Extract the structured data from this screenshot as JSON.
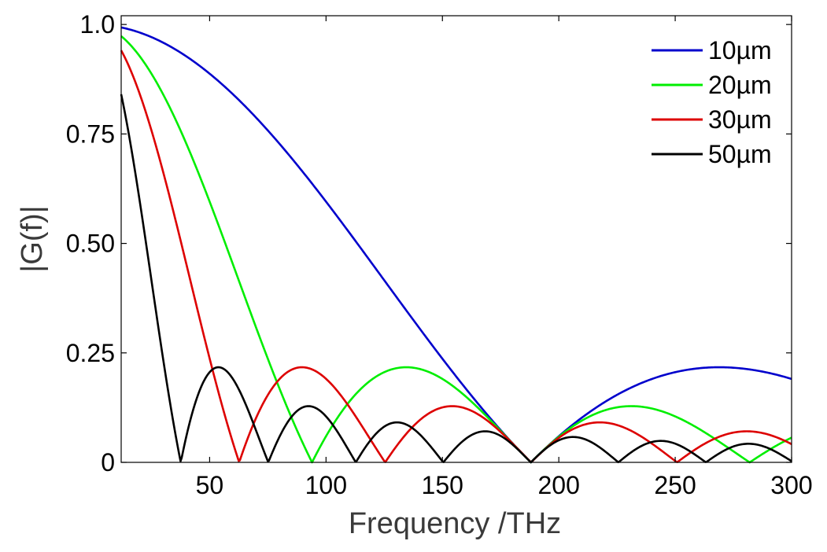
{
  "chart_data": {
    "type": "line",
    "xlabel": "Frequency /THz",
    "ylabel": "|G(f)|",
    "xlim": [
      12,
      300
    ],
    "ylim": [
      0,
      1.02
    ],
    "x_ticks": [
      50,
      100,
      150,
      200,
      250,
      300
    ],
    "x_tick_labels": [
      "50",
      "100",
      "150",
      "200",
      "250",
      "300"
    ],
    "y_ticks": [
      0,
      0.25,
      0.5,
      0.75,
      1.0
    ],
    "y_tick_labels": [
      "0",
      "0.25",
      "0.50",
      "0.75",
      "1.0"
    ],
    "grid": false,
    "box": true,
    "legend_position": "top-right",
    "model": {
      "kind": "abs-sinc",
      "description_units": "y = |sin(pi*f/f0)/(pi*f/f0)|, first zero f0 in THz",
      "x_start": 12,
      "x_end": 300,
      "x_step": 0.5
    },
    "series": [
      {
        "name": "10µm",
        "first_zero_THz": 188,
        "color": "#0000cc"
      },
      {
        "name": "20µm",
        "first_zero_THz": 94,
        "color": "#00ee00"
      },
      {
        "name": "30µm",
        "first_zero_THz": 62.7,
        "color": "#dd0000"
      },
      {
        "name": "50µm",
        "first_zero_THz": 37.6,
        "color": "#000000"
      }
    ]
  }
}
